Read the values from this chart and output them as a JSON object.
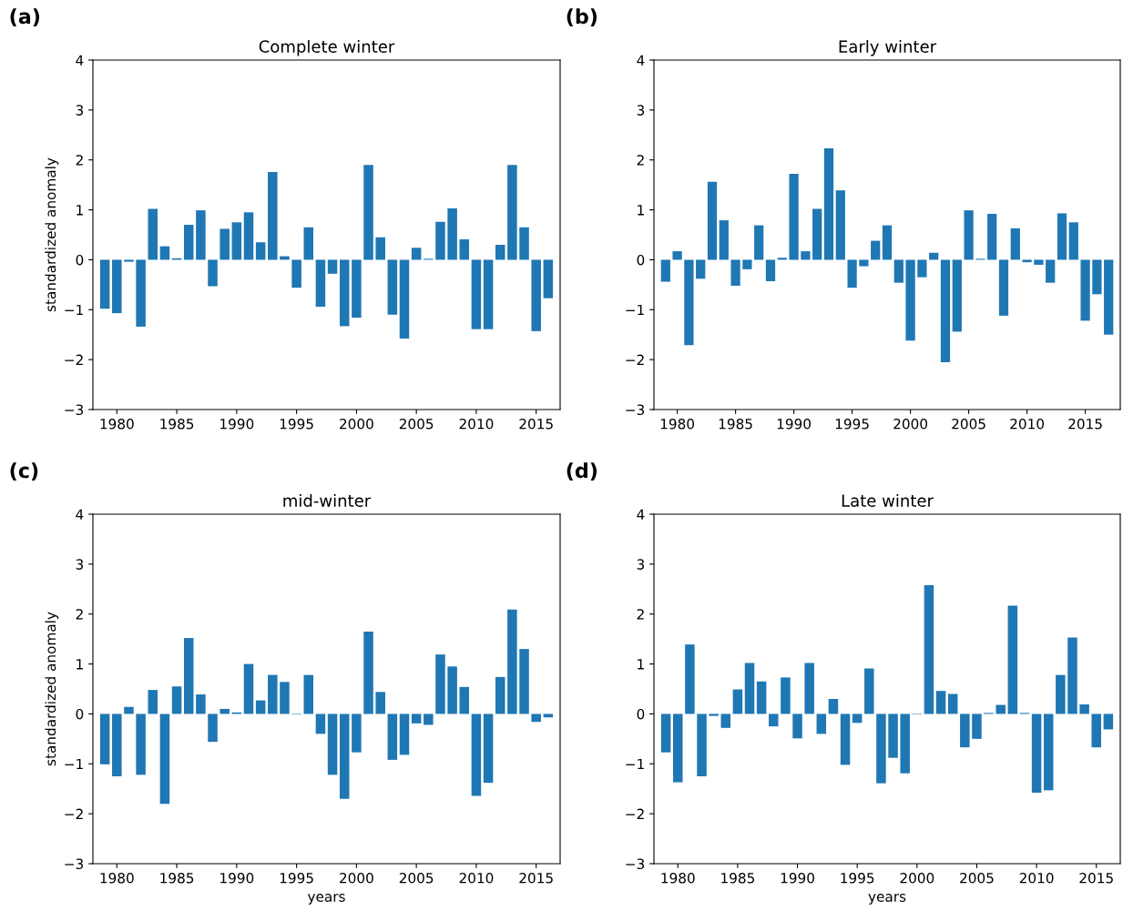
{
  "chart_data": [
    {
      "type": "bar",
      "title": "Complete winter",
      "ylabel": "standardized anomaly",
      "annotations": [
        "(a)"
      ],
      "color": "#1f77b4",
      "xlim": [
        1978,
        2017
      ],
      "xticks": [
        1980,
        1985,
        1990,
        1995,
        2000,
        2005,
        2010,
        2015
      ],
      "ylim": [
        -3,
        4
      ],
      "yticks": [
        -3,
        -2,
        -1,
        0,
        1,
        2,
        3,
        4
      ],
      "grid": false,
      "legend": false,
      "x": [
        1979,
        1980,
        1981,
        1982,
        1983,
        1984,
        1985,
        1986,
        1987,
        1988,
        1989,
        1990,
        1991,
        1992,
        1993,
        1994,
        1995,
        1996,
        1997,
        1998,
        1999,
        2000,
        2001,
        2002,
        2003,
        2004,
        2005,
        2006,
        2007,
        2008,
        2009,
        2010,
        2011,
        2012,
        2013,
        2014,
        2015,
        2016
      ],
      "values": [
        -0.98,
        -1.07,
        -0.04,
        -1.34,
        1.02,
        0.27,
        0.03,
        0.7,
        0.99,
        -0.53,
        0.62,
        0.75,
        0.95,
        0.35,
        1.76,
        0.07,
        -0.56,
        0.65,
        -0.94,
        -0.28,
        -1.33,
        -1.16,
        1.9,
        0.45,
        -1.1,
        -1.58,
        0.24,
        0.02,
        0.76,
        1.03,
        0.41,
        -1.39,
        -1.39,
        0.3,
        1.9,
        0.65,
        -1.43,
        -0.77
      ]
    },
    {
      "type": "bar",
      "title": "Early winter",
      "annotations": [
        "(b)"
      ],
      "color": "#1f77b4",
      "xlim": [
        1978,
        2018
      ],
      "xticks": [
        1980,
        1985,
        1990,
        1995,
        2000,
        2005,
        2010,
        2015
      ],
      "ylim": [
        -3,
        4
      ],
      "yticks": [
        -3,
        -2,
        -1,
        0,
        1,
        2,
        3,
        4
      ],
      "grid": false,
      "legend": false,
      "x": [
        1979,
        1980,
        1981,
        1982,
        1983,
        1984,
        1985,
        1986,
        1987,
        1988,
        1989,
        1990,
        1991,
        1992,
        1993,
        1994,
        1995,
        1996,
        1997,
        1998,
        1999,
        2000,
        2001,
        2002,
        2003,
        2004,
        2005,
        2006,
        2007,
        2008,
        2009,
        2010,
        2011,
        2012,
        2013,
        2014,
        2015,
        2016,
        2017
      ],
      "values": [
        -0.44,
        0.17,
        -1.71,
        -0.38,
        1.56,
        0.79,
        -0.52,
        -0.19,
        0.69,
        -0.43,
        0.04,
        1.72,
        0.17,
        1.02,
        2.23,
        1.39,
        -0.56,
        -0.13,
        0.38,
        0.69,
        -0.46,
        -1.62,
        -0.35,
        0.14,
        -2.05,
        -1.44,
        0.99,
        0.02,
        0.92,
        -1.12,
        0.63,
        -0.05,
        -0.1,
        -0.46,
        0.93,
        0.75,
        -1.22,
        -0.69,
        -1.5
      ]
    },
    {
      "type": "bar",
      "title": "mid-winter",
      "xlabel": "years",
      "ylabel": "standardized anomaly",
      "annotations": [
        "(c)"
      ],
      "color": "#1f77b4",
      "xlim": [
        1978,
        2017
      ],
      "xticks": [
        1980,
        1985,
        1990,
        1995,
        2000,
        2005,
        2010,
        2015
      ],
      "ylim": [
        -3,
        4
      ],
      "yticks": [
        -3,
        -2,
        -1,
        0,
        1,
        2,
        3,
        4
      ],
      "grid": false,
      "legend": false,
      "x": [
        1979,
        1980,
        1981,
        1982,
        1983,
        1984,
        1985,
        1986,
        1987,
        1988,
        1989,
        1990,
        1991,
        1992,
        1993,
        1994,
        1995,
        1996,
        1997,
        1998,
        1999,
        2000,
        2001,
        2002,
        2003,
        2004,
        2005,
        2006,
        2007,
        2008,
        2009,
        2010,
        2011,
        2012,
        2013,
        2014,
        2015,
        2016
      ],
      "values": [
        -1.01,
        -1.25,
        0.14,
        -1.22,
        0.48,
        -1.8,
        0.55,
        1.52,
        0.39,
        -0.56,
        0.1,
        0.03,
        1.0,
        0.27,
        0.78,
        0.64,
        -0.01,
        0.78,
        -0.4,
        -1.22,
        -1.7,
        -0.77,
        1.65,
        0.44,
        -0.92,
        -0.82,
        -0.19,
        -0.22,
        1.19,
        0.95,
        0.54,
        -1.64,
        -1.38,
        0.74,
        2.09,
        1.3,
        -0.16,
        -0.07
      ]
    },
    {
      "type": "bar",
      "title": "Late winter",
      "xlabel": "years",
      "annotations": [
        "(d)"
      ],
      "color": "#1f77b4",
      "xlim": [
        1978,
        2017
      ],
      "xticks": [
        1980,
        1985,
        1990,
        1995,
        2000,
        2005,
        2010,
        2015
      ],
      "ylim": [
        -3,
        4
      ],
      "yticks": [
        -3,
        -2,
        -1,
        0,
        1,
        2,
        3,
        4
      ],
      "grid": false,
      "legend": false,
      "x": [
        1979,
        1980,
        1981,
        1982,
        1983,
        1984,
        1985,
        1986,
        1987,
        1988,
        1989,
        1990,
        1991,
        1992,
        1993,
        1994,
        1995,
        1996,
        1997,
        1998,
        1999,
        2000,
        2001,
        2002,
        2003,
        2004,
        2005,
        2006,
        2007,
        2008,
        2009,
        2010,
        2011,
        2012,
        2013,
        2014,
        2015,
        2016
      ],
      "values": [
        -0.77,
        -1.37,
        1.39,
        -1.25,
        -0.04,
        -0.28,
        0.49,
        1.02,
        0.65,
        -0.25,
        0.73,
        -0.49,
        1.02,
        -0.4,
        0.3,
        -1.02,
        -0.18,
        0.91,
        -1.39,
        -0.88,
        -1.19,
        -0.01,
        2.58,
        0.46,
        0.4,
        -0.67,
        -0.5,
        0.02,
        0.18,
        2.17,
        0.02,
        -1.58,
        -1.53,
        0.78,
        1.53,
        0.19,
        -0.67,
        -0.31
      ]
    }
  ]
}
